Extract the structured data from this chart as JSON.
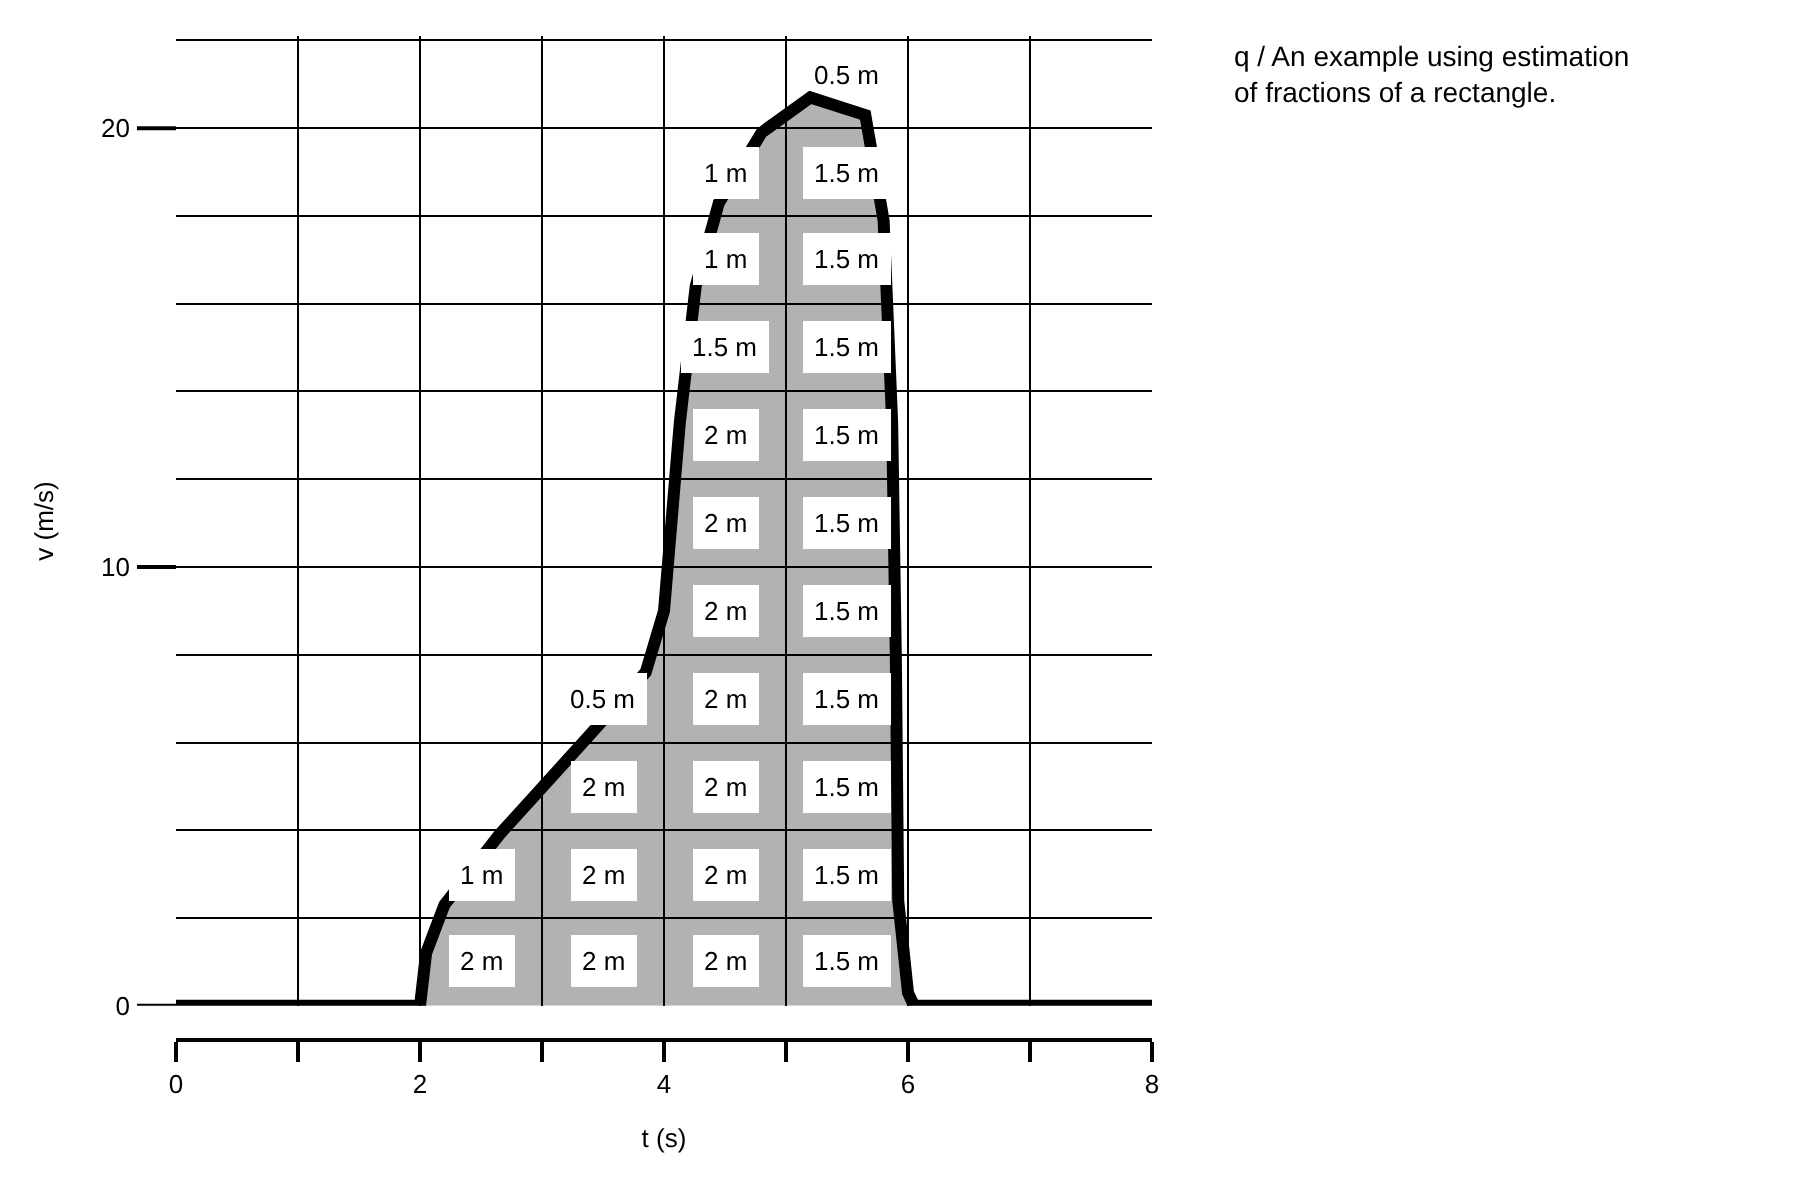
{
  "chart_data": {
    "type": "area",
    "xlabel": "t (s)",
    "ylabel": "v (m/s)",
    "x": [
      0,
      2,
      2.05,
      2.2,
      2.65,
      3.4,
      3.85,
      4.0,
      4.13,
      4.26,
      4.45,
      4.8,
      5.2,
      5.65,
      5.8,
      5.87,
      5.9,
      5.92,
      6.0,
      6.05,
      8
    ],
    "series": [
      {
        "color": "#000000",
        "values": [
          0,
          0,
          1.2,
          2.3,
          3.9,
          6.2,
          7.6,
          9,
          13.3,
          16.4,
          18.3,
          19.9,
          20.7,
          20.3,
          17.9,
          13.3,
          8,
          2.4,
          0.3,
          0,
          0
        ]
      }
    ],
    "xlim": [
      0,
      8
    ],
    "ylim": [
      0,
      22.1
    ],
    "xticks": [
      0,
      {
        "value": 1,
        "label": null
      },
      2,
      {
        "value": 3,
        "label": null
      },
      4,
      {
        "value": 5,
        "label": null
      },
      6,
      {
        "value": 7,
        "label": null
      },
      8
    ],
    "yticks": [
      0,
      {
        "value": 2,
        "label": null
      },
      {
        "value": 4,
        "label": null
      },
      {
        "value": 6,
        "label": null
      },
      {
        "value": 8,
        "label": null
      },
      10,
      {
        "value": 12,
        "label": null
      },
      {
        "value": 14,
        "label": null
      },
      {
        "value": 16,
        "label": null
      },
      {
        "value": 18,
        "label": null
      },
      20,
      {
        "value": 22,
        "label": null
      }
    ],
    "grid": true,
    "annotations": [
      "q / An example using estimation of fractions of a rectangle.",
      {
        "text": "2 m",
        "x": 2.5,
        "y": 1
      },
      {
        "text": "1 m",
        "x": 2.5,
        "y": 3
      },
      {
        "text": "2 m",
        "x": 3.5,
        "y": 1
      },
      {
        "text": "2 m",
        "x": 3.5,
        "y": 3
      },
      {
        "text": "2 m",
        "x": 3.5,
        "y": 5
      },
      {
        "text": "0.5 m",
        "x": 3.5,
        "y": 7
      },
      {
        "text": "2 m",
        "x": 4.5,
        "y": 1
      },
      {
        "text": "2 m",
        "x": 4.5,
        "y": 3
      },
      {
        "text": "2 m",
        "x": 4.5,
        "y": 5
      },
      {
        "text": "2 m",
        "x": 4.5,
        "y": 7
      },
      {
        "text": "2 m",
        "x": 4.5,
        "y": 9
      },
      {
        "text": "2 m",
        "x": 4.5,
        "y": 11
      },
      {
        "text": "2 m",
        "x": 4.5,
        "y": 13
      },
      {
        "text": "1.5 m",
        "x": 4.5,
        "y": 15
      },
      {
        "text": "1 m",
        "x": 4.5,
        "y": 17
      },
      {
        "text": "1 m",
        "x": 4.5,
        "y": 19
      },
      {
        "text": "1.5 m",
        "x": 5.5,
        "y": 1
      },
      {
        "text": "1.5 m",
        "x": 5.5,
        "y": 3
      },
      {
        "text": "1.5 m",
        "x": 5.5,
        "y": 5
      },
      {
        "text": "1.5 m",
        "x": 5.5,
        "y": 7
      },
      {
        "text": "1.5 m",
        "x": 5.5,
        "y": 9
      },
      {
        "text": "1.5 m",
        "x": 5.5,
        "y": 11
      },
      {
        "text": "1.5 m",
        "x": 5.5,
        "y": 13
      },
      {
        "text": "1.5 m",
        "x": 5.5,
        "y": 15
      },
      {
        "text": "1.5 m",
        "x": 5.5,
        "y": 17
      },
      {
        "text": "1.5 m",
        "x": 5.5,
        "y": 19
      },
      {
        "text": "0.5 m",
        "x": 5.5,
        "y": 20.5
      }
    ]
  }
}
